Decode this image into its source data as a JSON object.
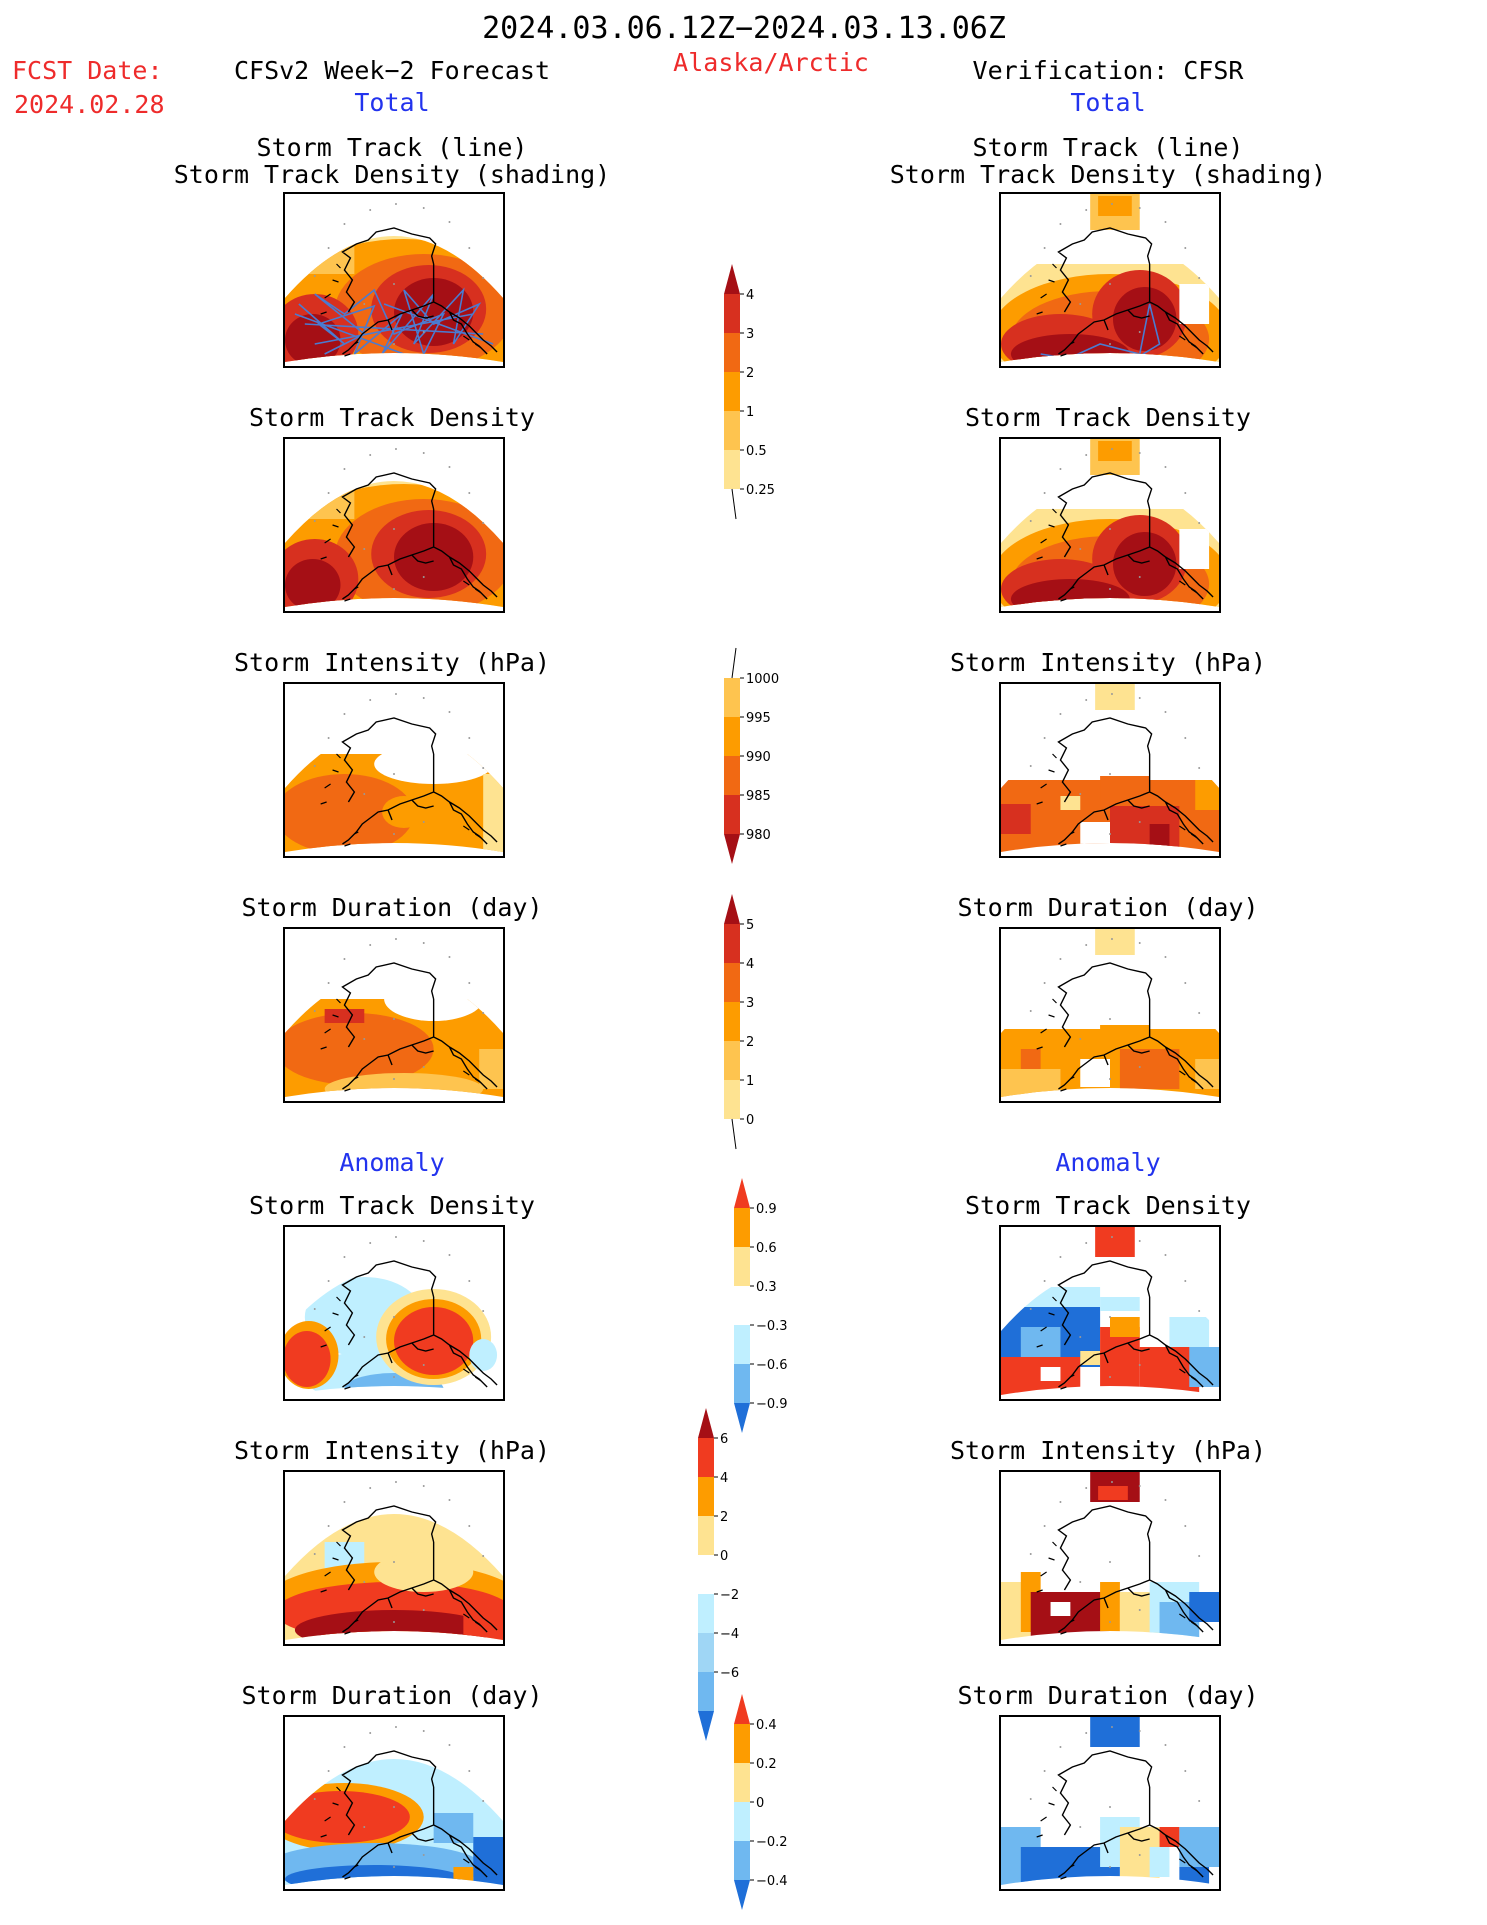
{
  "header": {
    "date_range": "2024.03.06.12Z−2024.03.13.06Z",
    "fcst_date_label": "FCST Date:",
    "fcst_date_value": "2024.02.28",
    "forecast_title": "CFSv2 Week−2 Forecast",
    "region": "Alaska/Arctic",
    "verification_title": "Verification: CFSR"
  },
  "sections": {
    "total_left": "Total",
    "total_right": "Total",
    "anomaly_left": "Anomaly",
    "anomaly_right": "Anomaly"
  },
  "panel_titles": {
    "track_line": "Storm Track (line)",
    "track_shading": "Storm Track Density (shading)",
    "density": "Storm Track Density",
    "intensity": "Storm Intensity (hPa)",
    "duration": "Storm Duration (day)"
  },
  "colorbars": {
    "density": {
      "labels": [
        "4",
        "3",
        "2",
        "1",
        "0.5",
        "0.25"
      ],
      "colors": [
        "#a50f15",
        "#d7301f",
        "#f16913",
        "#fd9c00",
        "#fec44f",
        "#fee391",
        "#fff7bc"
      ]
    },
    "intensity": {
      "labels": [
        "1000",
        "995",
        "990",
        "985",
        "980"
      ],
      "colors": [
        "#fff7bc",
        "#fec44f",
        "#fd9c00",
        "#f16913",
        "#d7301f",
        "#a50f15"
      ]
    },
    "duration": {
      "labels": [
        "5",
        "4",
        "3",
        "2",
        "1",
        "0"
      ],
      "colors": [
        "#a50f15",
        "#d7301f",
        "#f16913",
        "#fd9c00",
        "#fec44f",
        "#fee391",
        "#fff7bc"
      ]
    },
    "anom_density": {
      "labels": [
        "0.9",
        "0.6",
        "0.3",
        "−0.3",
        "−0.6",
        "−0.9"
      ],
      "colors": [
        "#f03b20",
        "#fd9c00",
        "#fee391",
        "#ffffff",
        "#bfefff",
        "#6fb8f0",
        "#1f6fd8"
      ]
    },
    "anom_intensity": {
      "labels": [
        "6",
        "4",
        "2",
        "0",
        "−2",
        "−4",
        "−6"
      ],
      "colors": [
        "#a50f15",
        "#f03b20",
        "#fd9c00",
        "#fee391",
        "#ffffff",
        "#bfefff",
        "#9fd6f5",
        "#6fb8f0",
        "#1f6fd8"
      ]
    },
    "anom_duration": {
      "labels": [
        "0.4",
        "0.2",
        "0",
        "−0.2",
        "−0.4"
      ],
      "colors": [
        "#f03b20",
        "#fd9c00",
        "#fee391",
        "#bfefff",
        "#6fb8f0",
        "#1f6fd8"
      ]
    }
  }
}
